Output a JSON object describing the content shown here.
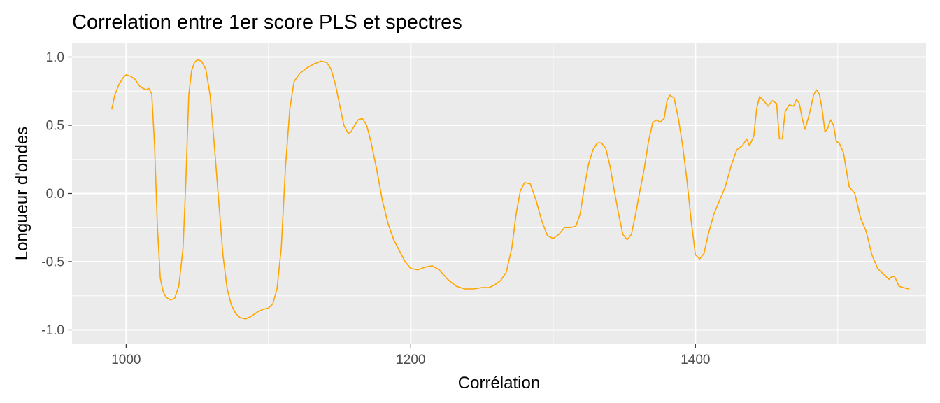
{
  "chart_data": {
    "type": "line",
    "title": "Correlation entre 1er score PLS et spectres",
    "xlabel": "Corrélation",
    "ylabel": "Longueur d'ondes",
    "xlim": [
      962,
      1562
    ],
    "ylim": [
      -1.1,
      1.1
    ],
    "x_ticks": [
      1000,
      1200,
      1400
    ],
    "x_tick_labels": [
      "1000",
      "1200",
      "1400"
    ],
    "y_ticks": [
      -1.0,
      -0.5,
      0.0,
      0.5,
      1.0
    ],
    "y_tick_labels": [
      "-1.0",
      "-0.5",
      "0.0",
      "0.5",
      "1.0"
    ],
    "grid": true,
    "legend": "none",
    "colors": {
      "line": "#FFA500",
      "panel": "#EBEBEB",
      "grid": "#FFFFFF"
    },
    "series": [
      {
        "x": [
          990,
          992,
          995,
          998,
          1000,
          1003,
          1006,
          1010,
          1014,
          1016,
          1018,
          1020,
          1022,
          1024,
          1026,
          1028,
          1031,
          1034,
          1037,
          1040,
          1042,
          1044,
          1046,
          1048,
          1050,
          1053,
          1056,
          1059,
          1062,
          1065,
          1068,
          1071,
          1074,
          1077,
          1080,
          1084,
          1088,
          1092,
          1096,
          1100,
          1103,
          1106,
          1109,
          1112,
          1115,
          1118,
          1122,
          1127,
          1132,
          1137,
          1141,
          1144,
          1147,
          1150,
          1153,
          1156,
          1158,
          1160,
          1163,
          1166,
          1169,
          1172,
          1176,
          1180,
          1184,
          1188,
          1192,
          1196,
          1200,
          1205,
          1210,
          1215,
          1220,
          1226,
          1232,
          1238,
          1244,
          1250,
          1255,
          1259,
          1263,
          1267,
          1271,
          1274,
          1277,
          1280,
          1284,
          1288,
          1292,
          1296,
          1300,
          1304,
          1308,
          1312,
          1316,
          1319,
          1322,
          1325,
          1328,
          1331,
          1334,
          1337,
          1340,
          1343,
          1346,
          1349,
          1352,
          1355,
          1358,
          1361,
          1364,
          1367,
          1370,
          1373,
          1375,
          1378,
          1380,
          1382,
          1385,
          1388,
          1391,
          1394,
          1397,
          1400,
          1403,
          1406,
          1409,
          1413,
          1417,
          1421,
          1425,
          1429,
          1433,
          1436,
          1438,
          1441,
          1443,
          1445,
          1448,
          1451,
          1454,
          1457,
          1459,
          1461,
          1463,
          1466,
          1469,
          1471,
          1473,
          1475,
          1477,
          1480,
          1483,
          1485,
          1487,
          1489,
          1491,
          1493,
          1495,
          1497,
          1499,
          1501,
          1504,
          1508,
          1512,
          1516,
          1520,
          1524,
          1528,
          1532,
          1536,
          1538,
          1540,
          1543,
          1546,
          1550
        ],
        "y": [
          0.62,
          0.72,
          0.8,
          0.85,
          0.87,
          0.86,
          0.84,
          0.78,
          0.76,
          0.77,
          0.73,
          0.35,
          -0.25,
          -0.62,
          -0.72,
          -0.76,
          -0.78,
          -0.77,
          -0.68,
          -0.4,
          0.1,
          0.72,
          0.9,
          0.96,
          0.98,
          0.97,
          0.91,
          0.72,
          0.35,
          -0.05,
          -0.45,
          -0.7,
          -0.82,
          -0.88,
          -0.91,
          -0.92,
          -0.9,
          -0.87,
          -0.85,
          -0.84,
          -0.81,
          -0.7,
          -0.4,
          0.2,
          0.62,
          0.82,
          0.88,
          0.92,
          0.95,
          0.97,
          0.96,
          0.91,
          0.8,
          0.65,
          0.5,
          0.44,
          0.45,
          0.49,
          0.54,
          0.55,
          0.5,
          0.38,
          0.18,
          -0.05,
          -0.22,
          -0.34,
          -0.42,
          -0.5,
          -0.55,
          -0.56,
          -0.54,
          -0.53,
          -0.56,
          -0.63,
          -0.68,
          -0.7,
          -0.7,
          -0.69,
          -0.69,
          -0.67,
          -0.64,
          -0.58,
          -0.4,
          -0.15,
          0.02,
          0.08,
          0.07,
          -0.05,
          -0.2,
          -0.31,
          -0.33,
          -0.3,
          -0.25,
          -0.25,
          -0.24,
          -0.15,
          0.05,
          0.22,
          0.32,
          0.37,
          0.37,
          0.33,
          0.2,
          0.02,
          -0.15,
          -0.3,
          -0.34,
          -0.3,
          -0.15,
          0.02,
          0.18,
          0.38,
          0.52,
          0.54,
          0.52,
          0.55,
          0.68,
          0.72,
          0.7,
          0.55,
          0.35,
          0.1,
          -0.2,
          -0.45,
          -0.48,
          -0.44,
          -0.3,
          -0.15,
          -0.05,
          0.05,
          0.2,
          0.32,
          0.35,
          0.4,
          0.35,
          0.42,
          0.62,
          0.71,
          0.68,
          0.64,
          0.68,
          0.66,
          0.4,
          0.4,
          0.6,
          0.65,
          0.64,
          0.69,
          0.66,
          0.55,
          0.47,
          0.58,
          0.72,
          0.76,
          0.73,
          0.62,
          0.45,
          0.48,
          0.54,
          0.5,
          0.38,
          0.37,
          0.3,
          0.05,
          0.0,
          -0.18,
          -0.28,
          -0.45,
          -0.55,
          -0.59,
          -0.63,
          -0.61,
          -0.61,
          -0.68,
          -0.69,
          -0.7
        ]
      }
    ]
  }
}
